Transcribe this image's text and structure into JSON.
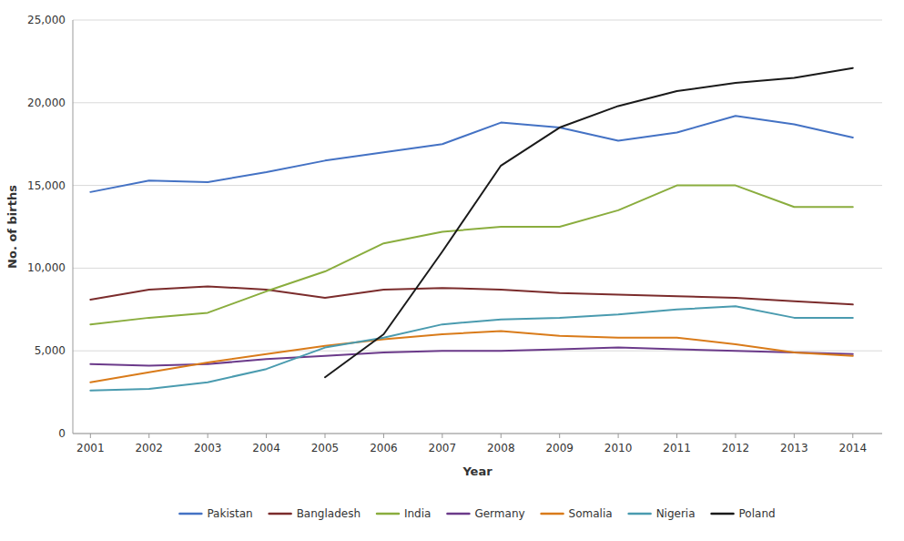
{
  "chart_data": {
    "type": "line",
    "xlabel": "Year",
    "ylabel": "No. of births",
    "x": [
      2001,
      2002,
      2003,
      2004,
      2005,
      2006,
      2007,
      2008,
      2009,
      2010,
      2011,
      2012,
      2013,
      2014
    ],
    "series": [
      {
        "name": "Pakistan",
        "color": "#4472C4",
        "values": [
          14600,
          15300,
          15200,
          15800,
          16500,
          17000,
          17500,
          18800,
          18500,
          17700,
          18200,
          19200,
          18700,
          17900
        ]
      },
      {
        "name": "Bangladesh",
        "color": "#7B2C2C",
        "values": [
          8100,
          8700,
          8900,
          8700,
          8200,
          8700,
          8800,
          8700,
          8500,
          8400,
          8300,
          8200,
          8000,
          7800
        ]
      },
      {
        "name": "India",
        "color": "#8AAD3E",
        "values": [
          6600,
          7000,
          7300,
          8600,
          9800,
          11500,
          12200,
          12500,
          12500,
          13500,
          15000,
          15000,
          13700,
          13700
        ]
      },
      {
        "name": "Germany",
        "color": "#6B3A8A",
        "values": [
          4200,
          4100,
          4200,
          4500,
          4700,
          4900,
          5000,
          5000,
          5100,
          5200,
          5100,
          5000,
          4900,
          4800
        ]
      },
      {
        "name": "Somalia",
        "color": "#D97B1A",
        "values": [
          3100,
          3700,
          4300,
          4800,
          5300,
          5700,
          6000,
          6200,
          5900,
          5800,
          5800,
          5400,
          4900,
          4700
        ]
      },
      {
        "name": "Nigeria",
        "color": "#4A9BAF",
        "values": [
          2600,
          2700,
          3100,
          3900,
          5200,
          5800,
          6600,
          6900,
          7000,
          7200,
          7500,
          7700,
          7000,
          7000
        ]
      },
      {
        "name": "Poland",
        "color": "#1A1A1A",
        "values": [
          null,
          null,
          null,
          null,
          3400,
          6000,
          11000,
          16200,
          18500,
          19800,
          20700,
          21200,
          21500,
          22100
        ]
      }
    ],
    "xlim": [
      2000.7,
      2014.5
    ],
    "xticks": [
      2001,
      2002,
      2003,
      2004,
      2005,
      2006,
      2007,
      2008,
      2009,
      2010,
      2011,
      2012,
      2013,
      2014
    ],
    "ylim": [
      0,
      25000
    ],
    "yticks": [
      0,
      {
        "value": 5000,
        "label": "5,000"
      },
      {
        "value": 10000,
        "label": "10,000"
      },
      {
        "value": 15000,
        "label": "15,000"
      },
      {
        "value": 20000,
        "label": "20,000"
      },
      {
        "value": 25000,
        "label": "25,000"
      }
    ],
    "grid": true,
    "legend": "bottom"
  }
}
